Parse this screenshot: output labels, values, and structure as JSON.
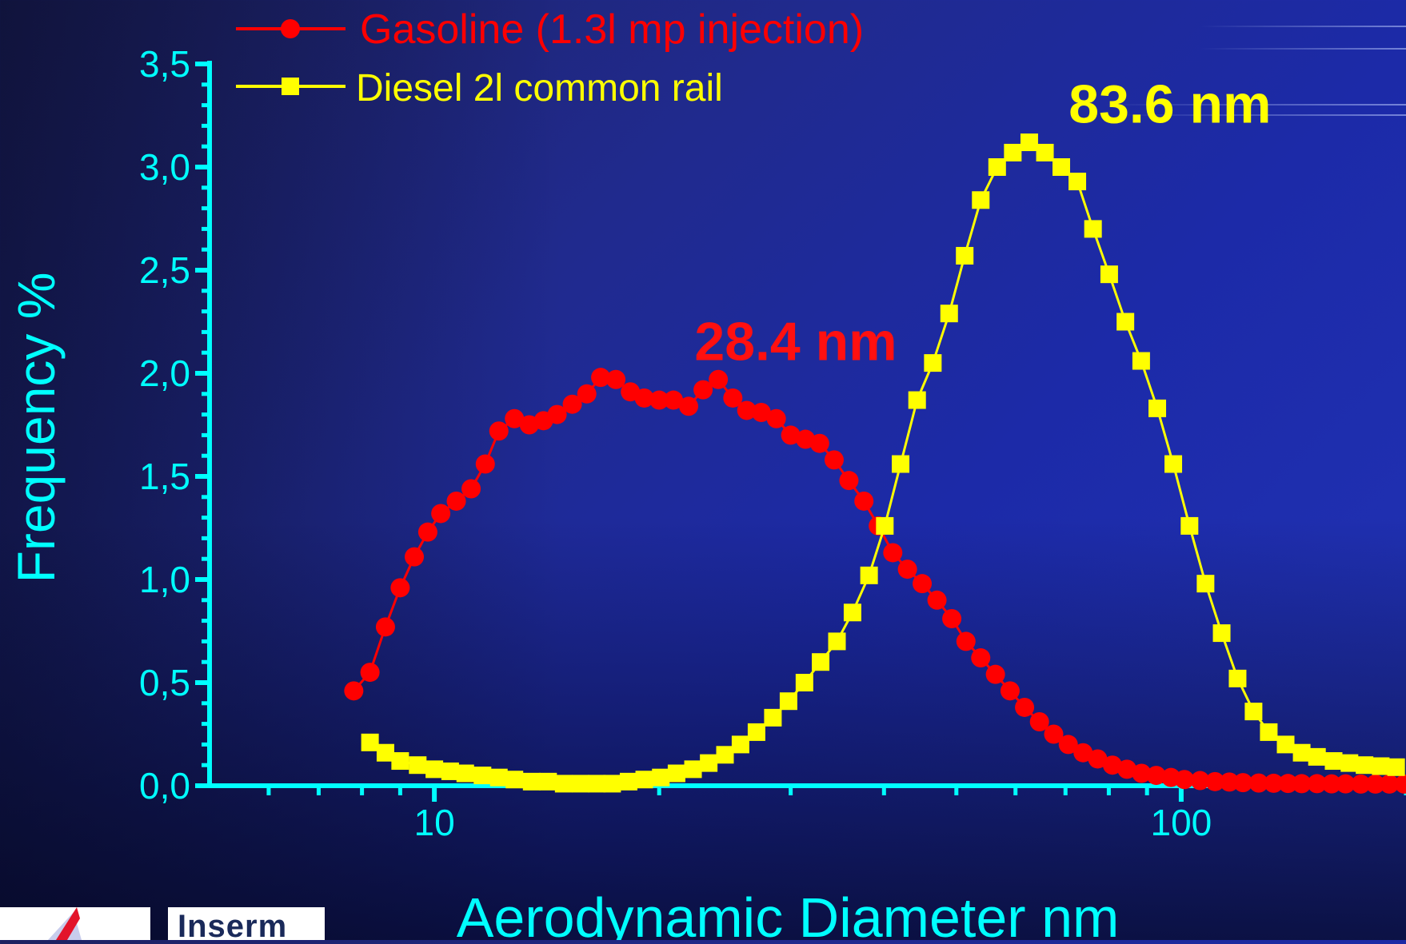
{
  "chart_data": {
    "type": "scatter",
    "ylabel": "Frequency %",
    "xlabel": "Aerodynamic Diameter nm",
    "x_scale": "log",
    "xlim": [
      5,
      200
    ],
    "ylim": [
      0,
      3.5
    ],
    "x_tick_labels": [
      {
        "value": 10,
        "label": "10"
      },
      {
        "value": 100,
        "label": "100"
      }
    ],
    "y_tick_labels": [
      {
        "value": 0.0,
        "label": "0,0"
      },
      {
        "value": 0.5,
        "label": "0,5"
      },
      {
        "value": 1.0,
        "label": "1,0"
      },
      {
        "value": 1.5,
        "label": "1,5"
      },
      {
        "value": 2.0,
        "label": "2,0"
      },
      {
        "value": 2.5,
        "label": "2,5"
      },
      {
        "value": 3.0,
        "label": "3,0"
      },
      {
        "value": 3.5,
        "label": "3,5"
      }
    ],
    "legend_position": "top-left",
    "series": [
      {
        "name": "Gasoline (1.3l mp injection)",
        "color": "#ff0000",
        "marker": "circle",
        "x": [
          7.8,
          8.2,
          8.6,
          9.0,
          9.4,
          9.8,
          10.2,
          10.7,
          11.2,
          11.7,
          12.2,
          12.8,
          13.4,
          14.0,
          14.6,
          15.3,
          16.0,
          16.7,
          17.5,
          18.3,
          19.1,
          20.0,
          20.9,
          21.9,
          22.9,
          24.0,
          25.1,
          26.2,
          27.4,
          28.7,
          30.0,
          31.4,
          32.8,
          34.3,
          35.9,
          37.6,
          39.3,
          41.1,
          43.0,
          45.0,
          47.1,
          49.3,
          51.5,
          53.9,
          56.4,
          59.0,
          61.7,
          64.6,
          67.5,
          70.6,
          73.9,
          77.3,
          80.9,
          84.6,
          88.5,
          92.6,
          96.9,
          101,
          106,
          111,
          116,
          121,
          127,
          133,
          139,
          145,
          152,
          159,
          166,
          174,
          182,
          190,
          199
        ],
        "y": [
          0.46,
          0.55,
          0.77,
          0.96,
          1.11,
          1.23,
          1.32,
          1.38,
          1.44,
          1.56,
          1.72,
          1.78,
          1.75,
          1.77,
          1.8,
          1.85,
          1.9,
          1.98,
          1.97,
          1.91,
          1.88,
          1.87,
          1.87,
          1.84,
          1.92,
          1.97,
          1.88,
          1.82,
          1.81,
          1.78,
          1.7,
          1.68,
          1.66,
          1.58,
          1.48,
          1.38,
          1.26,
          1.13,
          1.05,
          0.98,
          0.9,
          0.81,
          0.7,
          0.62,
          0.54,
          0.46,
          0.38,
          0.31,
          0.25,
          0.2,
          0.16,
          0.13,
          0.1,
          0.08,
          0.06,
          0.05,
          0.04,
          0.03,
          0.025,
          0.02,
          0.018,
          0.015,
          0.013,
          0.012,
          0.011,
          0.01,
          0.01,
          0.009,
          0.009,
          0.008,
          0.008,
          0.008,
          0.008
        ]
      },
      {
        "name": "Diesel 2l common rail",
        "color": "#ffff00",
        "marker": "square",
        "x": [
          8.2,
          8.6,
          9.0,
          9.5,
          10.0,
          10.5,
          11.0,
          11.6,
          12.2,
          12.8,
          13.5,
          14.2,
          14.9,
          15.7,
          16.5,
          17.3,
          18.2,
          19.1,
          20.1,
          21.1,
          22.2,
          23.3,
          24.5,
          25.7,
          27.0,
          28.4,
          29.8,
          31.3,
          32.9,
          34.6,
          36.3,
          38.2,
          40.1,
          42.1,
          44.3,
          46.5,
          48.9,
          51.3,
          53.9,
          56.7,
          59.5,
          62.6,
          65.7,
          69.1,
          72.6,
          76.2,
          80.1,
          84.2,
          88.4,
          92.9,
          97.6,
          102.6,
          107.8,
          113.3,
          119,
          125,
          131,
          138,
          145,
          152,
          160,
          168,
          176,
          185,
          194
        ],
        "y": [
          0.21,
          0.16,
          0.12,
          0.1,
          0.08,
          0.07,
          0.06,
          0.05,
          0.04,
          0.03,
          0.02,
          0.02,
          0.01,
          0.01,
          0.01,
          0.01,
          0.02,
          0.03,
          0.04,
          0.06,
          0.08,
          0.11,
          0.15,
          0.2,
          0.26,
          0.33,
          0.41,
          0.5,
          0.6,
          0.7,
          0.84,
          1.02,
          1.26,
          1.56,
          1.87,
          2.05,
          2.29,
          2.57,
          2.84,
          3.0,
          3.07,
          3.12,
          3.07,
          3.0,
          2.93,
          2.7,
          2.48,
          2.25,
          2.06,
          1.83,
          1.56,
          1.26,
          0.98,
          0.74,
          0.52,
          0.36,
          0.26,
          0.2,
          0.16,
          0.14,
          0.12,
          0.11,
          0.1,
          0.095,
          0.09
        ]
      }
    ],
    "annotations": [
      {
        "text": "28.4 nm",
        "x": 28.4,
        "y": 2.15,
        "color": "#ff1010"
      },
      {
        "text": "83.6 nm",
        "x": 83.6,
        "y": 3.3,
        "color": "#ffff00"
      }
    ]
  },
  "logos": [
    "Inserm"
  ]
}
